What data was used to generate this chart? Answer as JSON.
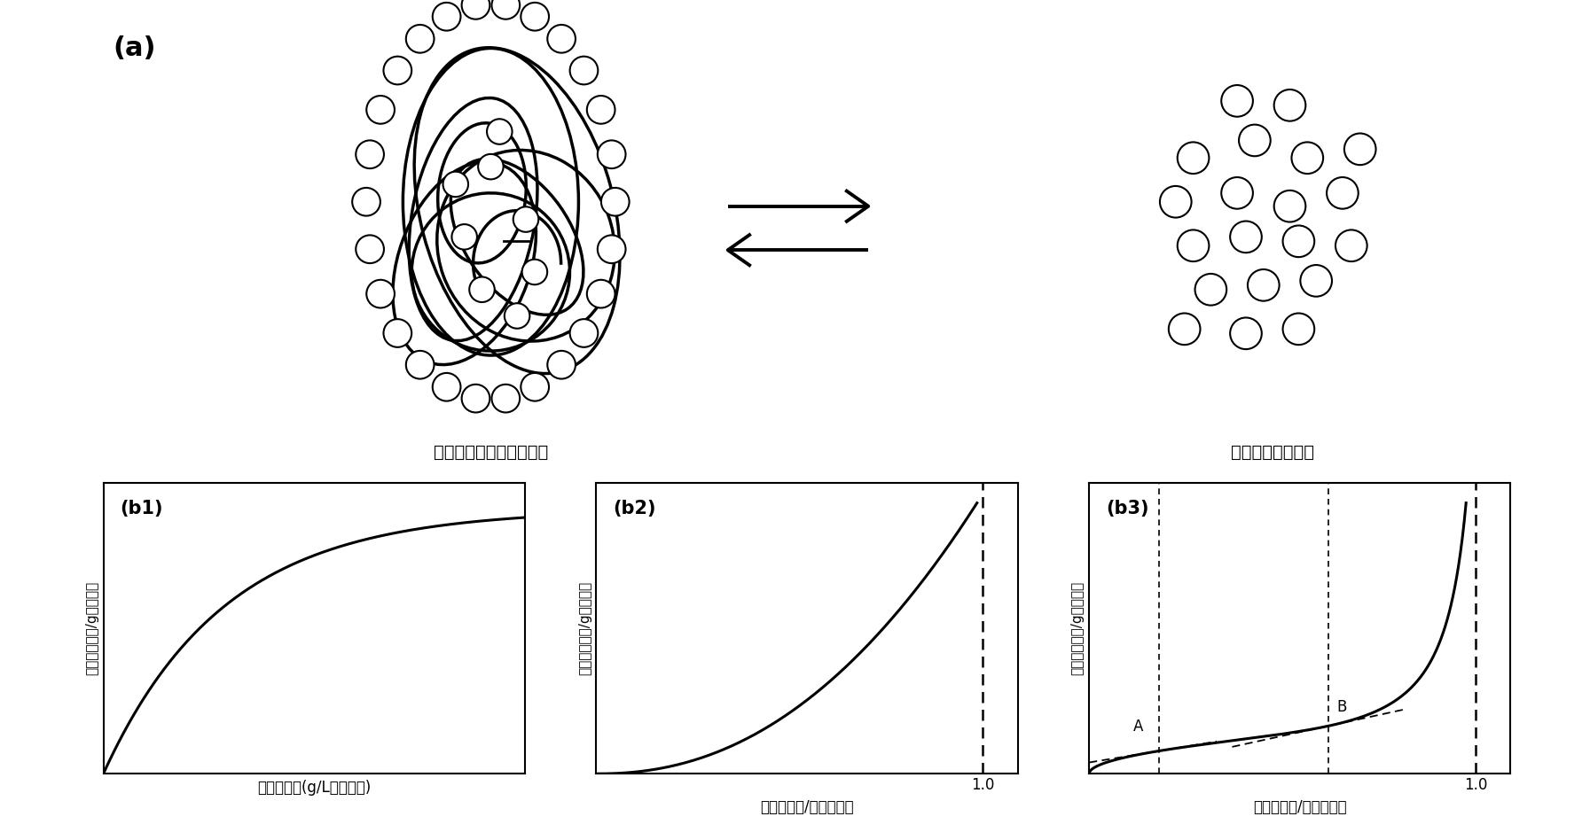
{
  "title_a": "(a)",
  "label_protein": "蛋白質結合水（水和水）",
  "label_free": "遊離水（自由水）",
  "b1_label": "(b1)",
  "b1_xlabel": "遊離水分量(g/L有機溶媒)",
  "b1_ylabel": "結合水分量＇/g举燥重量",
  "b2_label": "(b2)",
  "b2_xlabel": "遊離水分量/水分溶解度",
  "b2_ylabel": "結合水分量＇/g举燥重量",
  "b3_label": "(b3)",
  "b3_xlabel": "遊離水分量/水分溶解度",
  "b3_ylabel": "結合水分量＇/g举燥重量",
  "b3_point_A": "A",
  "b3_point_B": "B",
  "dashed_x_label": "1.0",
  "background_color": "#ffffff",
  "line_color": "#000000"
}
